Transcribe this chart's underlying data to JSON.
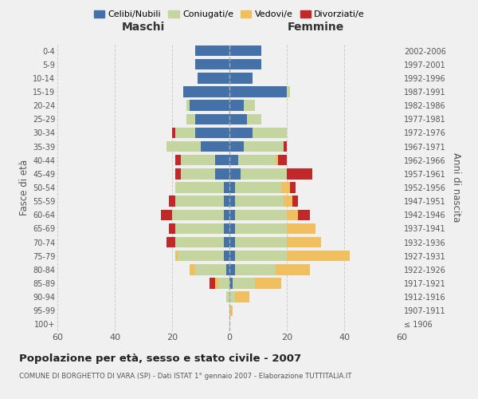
{
  "age_groups": [
    "100+",
    "95-99",
    "90-94",
    "85-89",
    "80-84",
    "75-79",
    "70-74",
    "65-69",
    "60-64",
    "55-59",
    "50-54",
    "45-49",
    "40-44",
    "35-39",
    "30-34",
    "25-29",
    "20-24",
    "15-19",
    "10-14",
    "5-9",
    "0-4"
  ],
  "birth_years": [
    "≤ 1906",
    "1907-1911",
    "1912-1916",
    "1917-1921",
    "1922-1926",
    "1927-1931",
    "1932-1936",
    "1937-1941",
    "1942-1946",
    "1947-1951",
    "1952-1956",
    "1957-1961",
    "1962-1966",
    "1967-1971",
    "1972-1976",
    "1977-1981",
    "1982-1986",
    "1987-1991",
    "1992-1996",
    "1997-2001",
    "2002-2006"
  ],
  "male": {
    "celibi": [
      0,
      0,
      0,
      0,
      1,
      2,
      2,
      2,
      2,
      2,
      2,
      5,
      5,
      10,
      12,
      12,
      14,
      16,
      11,
      12,
      12
    ],
    "coniugati": [
      0,
      0,
      1,
      4,
      11,
      16,
      17,
      17,
      18,
      17,
      17,
      12,
      12,
      12,
      7,
      3,
      1,
      0,
      0,
      0,
      0
    ],
    "vedovi": [
      0,
      0,
      0,
      1,
      2,
      1,
      0,
      0,
      0,
      0,
      0,
      0,
      0,
      0,
      0,
      0,
      0,
      0,
      0,
      0,
      0
    ],
    "divorziati": [
      0,
      0,
      0,
      2,
      0,
      0,
      3,
      2,
      4,
      2,
      0,
      2,
      2,
      0,
      1,
      0,
      0,
      0,
      0,
      0,
      0
    ]
  },
  "female": {
    "nubili": [
      0,
      0,
      0,
      1,
      2,
      2,
      2,
      2,
      2,
      2,
      2,
      4,
      3,
      5,
      8,
      6,
      5,
      20,
      8,
      11,
      11
    ],
    "coniugate": [
      0,
      0,
      2,
      8,
      14,
      18,
      18,
      18,
      18,
      17,
      16,
      16,
      13,
      14,
      12,
      5,
      4,
      1,
      0,
      0,
      0
    ],
    "vedove": [
      0,
      1,
      5,
      9,
      12,
      22,
      12,
      10,
      4,
      3,
      3,
      0,
      1,
      0,
      0,
      0,
      0,
      0,
      0,
      0,
      0
    ],
    "divorziate": [
      0,
      0,
      0,
      0,
      0,
      0,
      0,
      0,
      4,
      2,
      2,
      9,
      3,
      1,
      0,
      0,
      0,
      0,
      0,
      0,
      0
    ]
  },
  "colors": {
    "celibi": "#4472a8",
    "coniugati": "#c5d5a0",
    "vedovi": "#f0c060",
    "divorziati": "#c0282a"
  },
  "title": "Popolazione per età, sesso e stato civile - 2007",
  "subtitle": "COMUNE DI BORGHETTO DI VARA (SP) - Dati ISTAT 1° gennaio 2007 - Elaborazione TUTTITALIA.IT",
  "xlabel_left": "Maschi",
  "xlabel_right": "Femmine",
  "ylabel_left": "Fasce di età",
  "ylabel_right": "Anni di nascita",
  "xlim": 60,
  "background_color": "#f0f0f0",
  "grid_color": "#cccccc"
}
